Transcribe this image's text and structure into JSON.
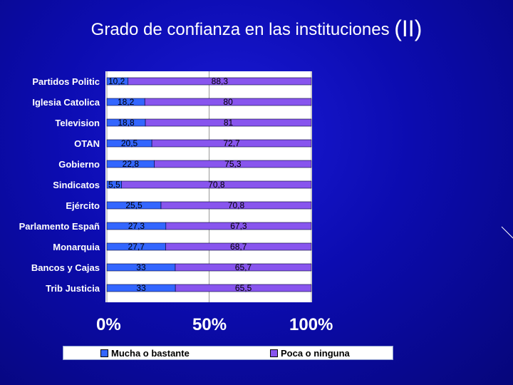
{
  "title": {
    "main": "Grado de confianza en las instituciones",
    "suffix": "(II)"
  },
  "colors": {
    "series_mucha": "#3366ff",
    "series_poca": "#8855ee",
    "background": "#0c0cb0"
  },
  "chart_data": {
    "type": "bar",
    "orientation": "horizontal",
    "stacked": "percent",
    "title": "Grado de confianza en las instituciones (II)",
    "categories": [
      "Partidos Politic",
      "Iglesia Catolica",
      "Television",
      "OTAN",
      "Gobierno",
      "Sindicatos",
      "Ejército",
      "Parlamento Españ",
      "Monarquia",
      "Bancos y Cajas",
      "Trib Justicia"
    ],
    "series": [
      {
        "name": "Mucha o bastante",
        "values": [
          10.2,
          18.2,
          18.8,
          20.5,
          22.8,
          5.5,
          25.5,
          27.3,
          27.7,
          33,
          33
        ],
        "labels": [
          "10,2",
          "18,2",
          "18,8",
          "20,5",
          "22,8",
          "5,5",
          "25,5",
          "27,3",
          "27,7",
          "33",
          "33"
        ]
      },
      {
        "name": "Poca o ninguna",
        "values": [
          88.3,
          80,
          81,
          72.7,
          75.3,
          70.8,
          70.8,
          67.3,
          68.7,
          65.7,
          65.5
        ],
        "labels": [
          "88,3",
          "80",
          "81",
          "72,7",
          "75,3",
          "70,8",
          "70,8",
          "67,3",
          "68,7",
          "65,7",
          "65,5"
        ]
      }
    ],
    "xticks": [
      "0%",
      "50%",
      "100%"
    ],
    "xlim": [
      0,
      100
    ],
    "legend_position": "bottom"
  }
}
